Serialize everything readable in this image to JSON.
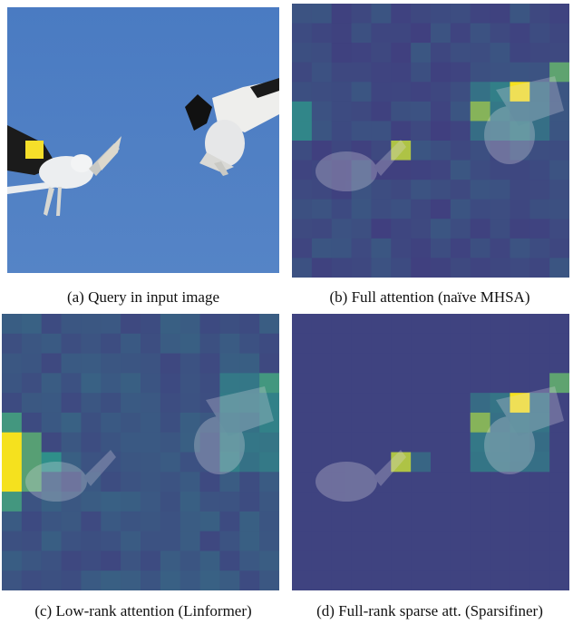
{
  "figure": {
    "panels": [
      {
        "id": "a",
        "caption": "(a) Query in input image",
        "kind": "photo"
      },
      {
        "id": "b",
        "caption": "(b) Full attention (naïve MHSA)",
        "kind": "heatmap"
      },
      {
        "id": "c",
        "caption": "(c) Low-rank attention (Linformer)",
        "kind": "heatmap"
      },
      {
        "id": "d",
        "caption": "(d) Full-rank sparse att. (Sparsifiner)",
        "kind": "heatmap"
      }
    ]
  },
  "colors": {
    "sky": "#4f7fc4",
    "query_patch": "#f5df2a",
    "heat_low": "#43307d",
    "heat_mid": "#2f8f8a",
    "heat_high": "#f5e11e",
    "heat_green": "#7fd04a"
  }
}
